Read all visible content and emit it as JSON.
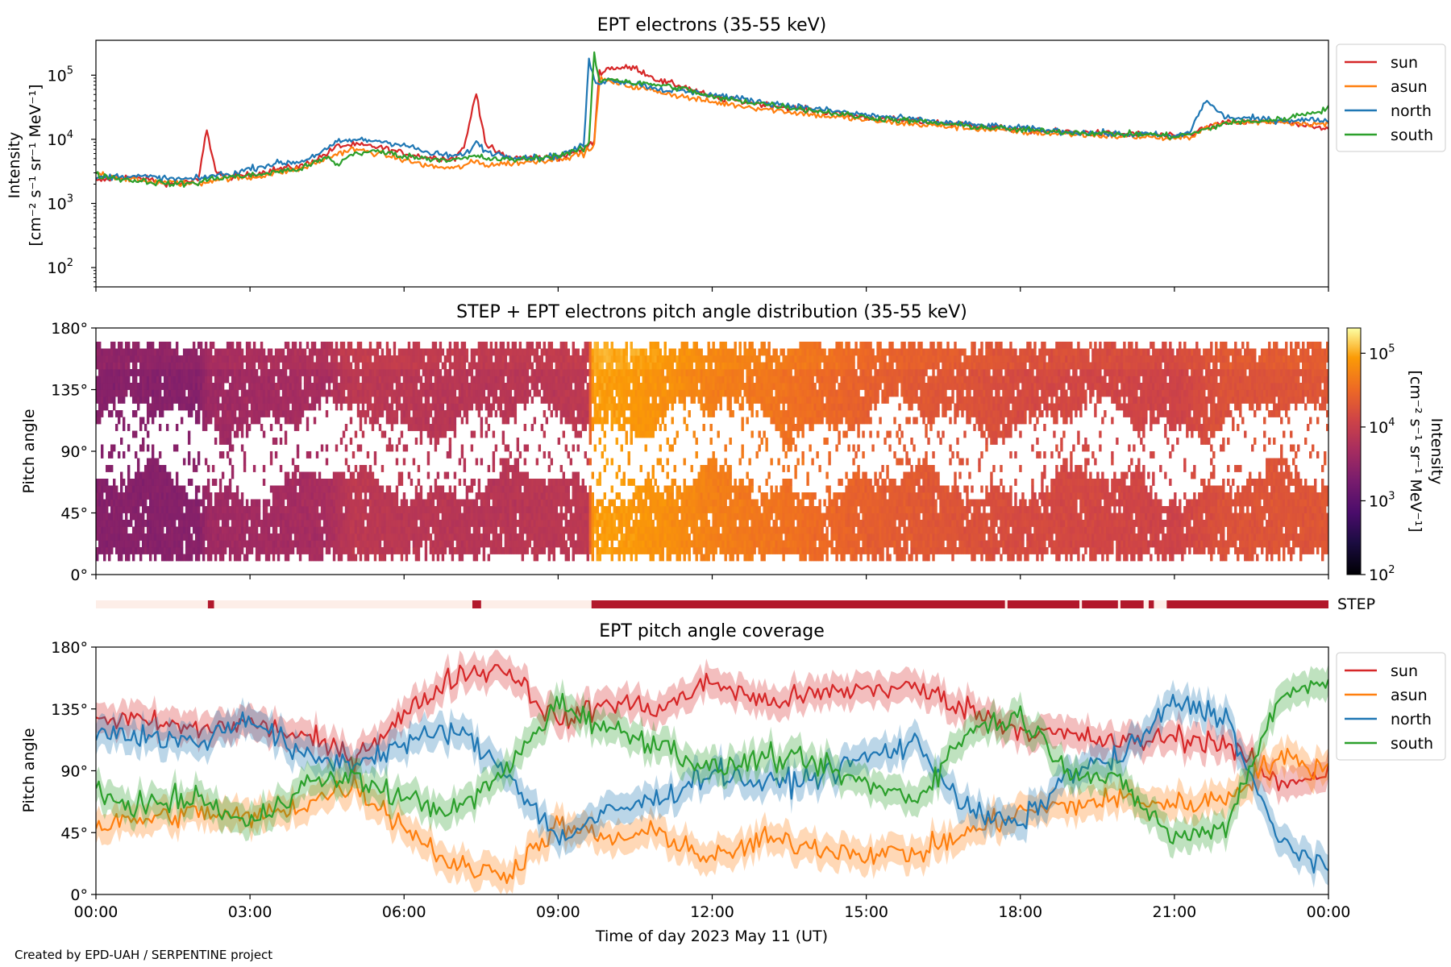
{
  "figure": {
    "credit": "Created by EPD-UAH / SERPENTINE project"
  },
  "colors": {
    "sun": "#d62728",
    "asun": "#ff7f0e",
    "north": "#1f77b4",
    "south": "#2ca02c",
    "step_on": "#b2182b",
    "step_off": "#fdeee8"
  },
  "chart_data": [
    {
      "type": "line",
      "title": "EPT electrons (35-55 keV)",
      "ylabel_line1": "Intensity",
      "ylabel_line2": "[cm⁻² s⁻¹ sr⁻¹ MeV⁻¹]",
      "yscale": "log",
      "ylim": [
        50,
        350000
      ],
      "yticks": [
        {
          "value": 100,
          "base": "10",
          "exp": "2"
        },
        {
          "value": 1000,
          "base": "10",
          "exp": "3"
        },
        {
          "value": 10000,
          "base": "10",
          "exp": "4"
        },
        {
          "value": 100000,
          "base": "10",
          "exp": "5"
        }
      ],
      "xlim": [
        0,
        24
      ],
      "legend_position": "outside-right",
      "x": [
        0,
        0.5,
        1,
        1.5,
        2,
        2.15,
        2.35,
        2.6,
        3,
        3.5,
        4,
        4.5,
        4.7,
        5,
        5.5,
        6,
        6.5,
        7,
        7.2,
        7.4,
        7.6,
        8,
        8.5,
        9,
        9.5,
        9.6,
        9.7,
        9.8,
        10,
        10.5,
        11,
        11.5,
        12,
        13,
        14,
        15,
        16,
        17,
        18,
        19,
        20,
        20.5,
        21,
        21.3,
        21.6,
        22,
        23,
        24
      ],
      "series": [
        {
          "name": "sun",
          "values": [
            2200,
            2600,
            2400,
            2000,
            2300,
            14000,
            3000,
            2600,
            2800,
            3400,
            3800,
            6000,
            7800,
            8200,
            7600,
            6000,
            5200,
            5000,
            9000,
            55000,
            8000,
            5200,
            5200,
            5200,
            7000,
            8000,
            9000,
            110000,
            130000,
            130000,
            80000,
            65000,
            45000,
            35000,
            28000,
            22000,
            19000,
            17000,
            14000,
            13000,
            12000,
            12000,
            11000,
            12000,
            15000,
            18000,
            19000,
            14000
          ]
        },
        {
          "name": "asun",
          "values": [
            3000,
            2500,
            2200,
            2100,
            2000,
            2200,
            2400,
            2500,
            2500,
            3000,
            3500,
            5000,
            6000,
            7000,
            6000,
            4800,
            3800,
            3500,
            4000,
            4500,
            4000,
            4200,
            4500,
            5000,
            6000,
            7000,
            7500,
            85000,
            80000,
            65000,
            55000,
            45000,
            38000,
            30000,
            24000,
            20000,
            17000,
            15000,
            13000,
            12000,
            11000,
            11000,
            10000,
            11000,
            15000,
            18000,
            19000,
            17000
          ]
        },
        {
          "name": "north",
          "values": [
            2500,
            2700,
            2600,
            2400,
            2400,
            2600,
            2800,
            2800,
            3500,
            4200,
            4500,
            7000,
            9000,
            9800,
            9500,
            8200,
            6000,
            5500,
            5800,
            9000,
            6500,
            5500,
            5200,
            5500,
            8000,
            180000,
            80000,
            78000,
            85000,
            75000,
            60000,
            55000,
            50000,
            38000,
            30000,
            24000,
            20000,
            17000,
            15000,
            13000,
            12000,
            12000,
            11000,
            13000,
            40000,
            22000,
            20000,
            20000
          ]
        },
        {
          "name": "south",
          "values": [
            2800,
            2400,
            2200,
            2000,
            2100,
            2300,
            2500,
            2600,
            2700,
            3100,
            3500,
            5200,
            4000,
            6000,
            6500,
            5500,
            5000,
            4800,
            5000,
            5500,
            5000,
            4800,
            5000,
            5600,
            7000,
            9000,
            220000,
            80000,
            90000,
            75000,
            70000,
            60000,
            45000,
            36000,
            28000,
            22000,
            19000,
            16000,
            14000,
            13000,
            12000,
            12000,
            11000,
            12000,
            14000,
            18000,
            20000,
            30000
          ]
        }
      ]
    },
    {
      "type": "heatmap",
      "title": "STEP + EPT electrons pitch angle distribution (35-55 keV)",
      "ylabel": "Pitch angle",
      "yticks": [
        "0°",
        "45°",
        "90°",
        "135°",
        "180°"
      ],
      "ylim": [
        0,
        180
      ],
      "xlim": [
        0,
        24
      ],
      "colorbar": {
        "label": "Intensity",
        "units": "[cm⁻² s⁻¹ sr⁻¹ MeV⁻¹]",
        "scale": "log",
        "range": [
          100,
          220000
        ],
        "ticks": [
          {
            "value": 100,
            "base": "10",
            "exp": "2"
          },
          {
            "value": 1000,
            "base": "10",
            "exp": "3"
          },
          {
            "value": 10000,
            "base": "10",
            "exp": "4"
          },
          {
            "value": 100000,
            "base": "10",
            "exp": "5"
          }
        ]
      },
      "intensity_profile": {
        "x": [
          0,
          2,
          2.2,
          4.5,
          5,
          7.5,
          9.6,
          9.7,
          10.5,
          12,
          15,
          18,
          21,
          22,
          24
        ],
        "values": [
          2500,
          2500,
          4000,
          5000,
          8000,
          7000,
          8000,
          90000,
          80000,
          50000,
          25000,
          15000,
          12000,
          18000,
          20000
        ]
      }
    },
    {
      "type": "bar",
      "label": "STEP",
      "x_range": [
        0,
        24
      ],
      "on_intervals": [
        [
          2.18,
          2.3
        ],
        [
          7.33,
          7.5
        ],
        [
          9.65,
          17.7
        ],
        [
          17.75,
          19.15
        ],
        [
          19.2,
          19.9
        ],
        [
          19.95,
          20.4
        ],
        [
          20.5,
          20.6
        ],
        [
          20.85,
          24
        ]
      ]
    },
    {
      "type": "line",
      "title": "EPT pitch angle coverage",
      "ylabel": "Pitch angle",
      "yticks": [
        "0°",
        "45°",
        "90°",
        "135°",
        "180°"
      ],
      "ylim": [
        0,
        180
      ],
      "xlim": [
        0,
        24
      ],
      "xlabel": "Time of day 2023 May 11 (UT)",
      "xticks": [
        "00:00",
        "03:00",
        "06:00",
        "09:00",
        "12:00",
        "15:00",
        "18:00",
        "21:00",
        "00:00"
      ],
      "legend_position": "outside-right",
      "x": [
        0,
        1,
        2,
        3,
        4,
        5,
        6,
        7,
        8,
        9,
        10,
        11,
        12,
        13,
        14,
        15,
        16,
        17,
        18,
        19,
        20,
        21,
        22,
        23,
        24
      ],
      "series": [
        {
          "name": "sun",
          "values": [
            130,
            125,
            120,
            125,
            115,
            100,
            130,
            160,
            165,
            125,
            140,
            135,
            155,
            140,
            145,
            150,
            150,
            135,
            120,
            115,
            110,
            115,
            110,
            80,
            90
          ]
        },
        {
          "name": "asun",
          "values": [
            50,
            55,
            60,
            55,
            65,
            80,
            50,
            20,
            15,
            50,
            40,
            45,
            25,
            40,
            35,
            30,
            30,
            45,
            60,
            65,
            70,
            65,
            70,
            100,
            90
          ]
        },
        {
          "name": "north",
          "values": [
            120,
            115,
            110,
            130,
            100,
            95,
            110,
            120,
            90,
            40,
            60,
            70,
            90,
            80,
            85,
            100,
            110,
            60,
            50,
            90,
            100,
            140,
            130,
            40,
            20
          ]
        },
        {
          "name": "south",
          "values": [
            70,
            65,
            70,
            50,
            80,
            85,
            70,
            60,
            90,
            140,
            120,
            110,
            90,
            100,
            95,
            80,
            70,
            120,
            130,
            90,
            80,
            40,
            50,
            140,
            160
          ]
        }
      ]
    }
  ]
}
